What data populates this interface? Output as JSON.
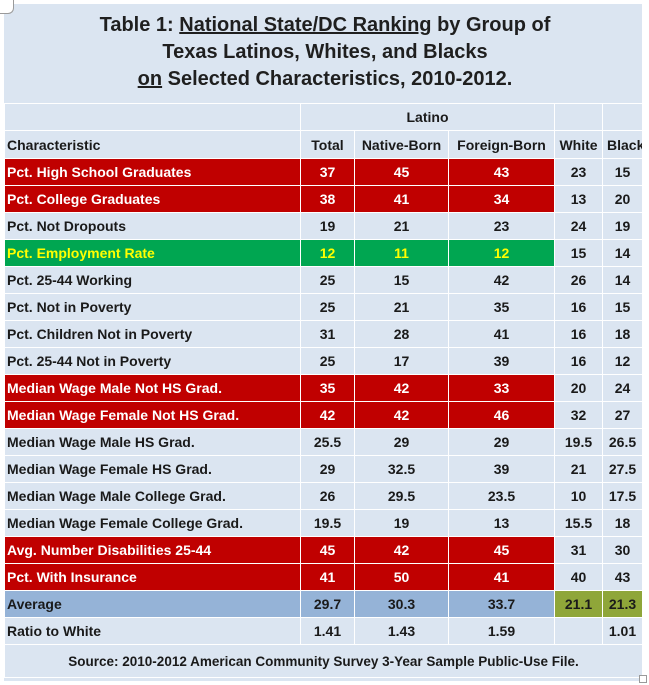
{
  "title": {
    "line1_prefix": "Table 1: ",
    "line1_underlined": "National State/DC Ranking",
    "line1_suffix": " by Group of",
    "line2": "Texas Latinos, Whites, and Blacks",
    "line3_underlined": "on",
    "line3_rest": " Selected Characteristics, 2010-2012."
  },
  "group_header": "Latino",
  "columns": [
    "Characteristic",
    "Total",
    "Native-Born",
    "Foreign-Born",
    "White",
    "Black"
  ],
  "rows": [
    {
      "label": "Pct. High School Graduates",
      "total": "37",
      "native": "45",
      "foreign": "43",
      "white": "23",
      "black": "15",
      "style": "red"
    },
    {
      "label": "Pct. College Graduates",
      "total": "38",
      "native": "41",
      "foreign": "34",
      "white": "13",
      "black": "20",
      "style": "red"
    },
    {
      "label": "Pct. Not Dropouts",
      "total": "19",
      "native": "21",
      "foreign": "23",
      "white": "24",
      "black": "19",
      "style": "plain"
    },
    {
      "label": "Pct. Employment Rate",
      "total": "12",
      "native": "11",
      "foreign": "12",
      "white": "15",
      "black": "14",
      "style": "green"
    },
    {
      "label": "Pct. 25-44 Working",
      "total": "25",
      "native": "15",
      "foreign": "42",
      "white": "26",
      "black": "14",
      "style": "plain"
    },
    {
      "label": "Pct. Not in Poverty",
      "total": "25",
      "native": "21",
      "foreign": "35",
      "white": "16",
      "black": "15",
      "style": "plain"
    },
    {
      "label": "Pct. Children Not in Poverty",
      "total": "31",
      "native": "28",
      "foreign": "41",
      "white": "16",
      "black": "18",
      "style": "plain"
    },
    {
      "label": "Pct. 25-44 Not in Poverty",
      "total": "25",
      "native": "17",
      "foreign": "39",
      "white": "16",
      "black": "12",
      "style": "plain"
    },
    {
      "label": "Median Wage Male Not HS Grad.",
      "total": "35",
      "native": "42",
      "foreign": "33",
      "white": "20",
      "black": "24",
      "style": "red"
    },
    {
      "label": "Median Wage Female Not HS Grad.",
      "total": "42",
      "native": "42",
      "foreign": "46",
      "white": "32",
      "black": "27",
      "style": "red"
    },
    {
      "label": "Median Wage Male HS Grad.",
      "total": "25.5",
      "native": "29",
      "foreign": "29",
      "white": "19.5",
      "black": "26.5",
      "style": "plain"
    },
    {
      "label": "Median Wage Female HS Grad.",
      "total": "29",
      "native": "32.5",
      "foreign": "39",
      "white": "21",
      "black": "27.5",
      "style": "plain"
    },
    {
      "label": "Median Wage Male College Grad.",
      "total": "26",
      "native": "29.5",
      "foreign": "23.5",
      "white": "10",
      "black": "17.5",
      "style": "plain"
    },
    {
      "label": "Median Wage Female College Grad.",
      "total": "19.5",
      "native": "19",
      "foreign": "13",
      "white": "15.5",
      "black": "18",
      "style": "plain"
    },
    {
      "label": "Avg. Number Disabilities 25-44",
      "total": "45",
      "native": "42",
      "foreign": "45",
      "white": "31",
      "black": "30",
      "style": "red"
    },
    {
      "label": "Pct. With Insurance",
      "total": "41",
      "native": "50",
      "foreign": "41",
      "white": "40",
      "black": "43",
      "style": "red"
    }
  ],
  "average": {
    "label": "Average",
    "total": "29.7",
    "native": "30.3",
    "foreign": "33.7",
    "white": "21.1",
    "black": "21.3"
  },
  "ratio": {
    "label": "Ratio to White",
    "total": "1.41",
    "native": "1.43",
    "foreign": "1.59",
    "white": "",
    "black": "1.01"
  },
  "source": "Source: 2010-2012 American Community Survey 3-Year Sample Public-Use File.",
  "colors": {
    "background": "#dbe5f1",
    "highlight_red": "#c00000",
    "highlight_green": "#00a651",
    "average_row": "#95b3d7",
    "average_white_black": "#8fa639",
    "green_text": "#ffff00"
  }
}
